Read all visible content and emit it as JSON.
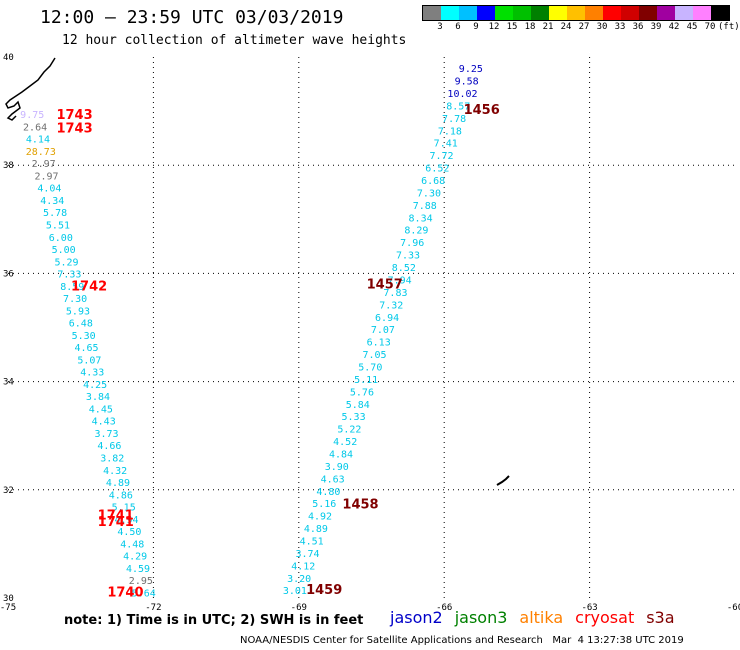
{
  "header": {
    "title": "12:00 — 23:59 UTC 03/03/2019",
    "subtitle": "12 hour collection of altimeter wave heights"
  },
  "colorbar": {
    "colors": [
      "#7f7f7f",
      "#00ffff",
      "#00c0ff",
      "#0000ff",
      "#00e000",
      "#00c000",
      "#008000",
      "#ffff00",
      "#ffc000",
      "#ff8000",
      "#ff0000",
      "#d00000",
      "#800000",
      "#a000a0",
      "#c8b4ff",
      "#ff80ff",
      "#000000"
    ],
    "labels": [
      "3",
      "6",
      "9",
      "12",
      "15",
      "18",
      "21",
      "24",
      "27",
      "30",
      "33",
      "36",
      "39",
      "42",
      "45",
      "70"
    ],
    "unit": "(ft)"
  },
  "axes": {
    "lon_ticks": [
      -75,
      -72,
      -69,
      -66,
      -63,
      -60
    ],
    "lat_ticks": [
      40,
      38,
      36,
      34,
      32,
      30
    ],
    "lon_range": [
      -75,
      -60
    ],
    "lat_range": [
      30,
      40
    ]
  },
  "tracks": [
    {
      "lon_top": -65.45,
      "lat_top": 39.72,
      "lon_bot": -69.08,
      "lat_bot": 30.07,
      "points": [
        {
          "v": "9.25",
          "c": "#0000c0"
        },
        {
          "v": "9.58",
          "c": "#0000c0"
        },
        {
          "v": "10.02",
          "c": "#0000c0"
        },
        {
          "v": "8.57",
          "c": "#00c8e8"
        },
        {
          "v": "7.78",
          "c": "#00c8e8"
        },
        {
          "v": "7.18",
          "c": "#00c8e8"
        },
        {
          "v": "7.41",
          "c": "#00c8e8"
        },
        {
          "v": "7.72",
          "c": "#00c8e8"
        },
        {
          "v": "6.52",
          "c": "#00c8e8"
        },
        {
          "v": "6.68",
          "c": "#00c8e8"
        },
        {
          "v": "7.30",
          "c": "#00c8e8"
        },
        {
          "v": "7.88",
          "c": "#00c8e8"
        },
        {
          "v": "8.34",
          "c": "#00c8e8"
        },
        {
          "v": "8.29",
          "c": "#00c8e8"
        },
        {
          "v": "7.96",
          "c": "#00c8e8"
        },
        {
          "v": "7.33",
          "c": "#00c8e8"
        },
        {
          "v": "8.52",
          "c": "#00c8e8"
        },
        {
          "v": "7.94",
          "c": "#00c8e8"
        },
        {
          "v": "7.83",
          "c": "#00c8e8"
        },
        {
          "v": "7.32",
          "c": "#00c8e8"
        },
        {
          "v": "6.94",
          "c": "#00c8e8"
        },
        {
          "v": "7.07",
          "c": "#00c8e8"
        },
        {
          "v": "6.13",
          "c": "#00c8e8"
        },
        {
          "v": "7.05",
          "c": "#00c8e8"
        },
        {
          "v": "5.70",
          "c": "#00c8e8"
        },
        {
          "v": "5.11",
          "c": "#00c8e8"
        },
        {
          "v": "5.76",
          "c": "#00c8e8"
        },
        {
          "v": "5.84",
          "c": "#00c8e8"
        },
        {
          "v": "5.33",
          "c": "#00c8e8"
        },
        {
          "v": "5.22",
          "c": "#00c8e8"
        },
        {
          "v": "4.52",
          "c": "#00c8e8"
        },
        {
          "v": "4.84",
          "c": "#00c8e8"
        },
        {
          "v": "3.90",
          "c": "#00c8e8"
        },
        {
          "v": "4.63",
          "c": "#00c8e8"
        },
        {
          "v": "4.80",
          "c": "#00c8e8"
        },
        {
          "v": "5.16",
          "c": "#00c8e8"
        },
        {
          "v": "4.92",
          "c": "#00c8e8"
        },
        {
          "v": "4.89",
          "c": "#00c8e8"
        },
        {
          "v": "4.51",
          "c": "#00c8e8"
        },
        {
          "v": "3.74",
          "c": "#00c8e8"
        },
        {
          "v": "4.12",
          "c": "#00c8e8"
        },
        {
          "v": "3.20",
          "c": "#00c8e8"
        },
        {
          "v": "3.01",
          "c": "#00c8e8"
        }
      ],
      "times": [
        {
          "t": "1456",
          "lon": -65.6,
          "lat": 38.95,
          "c": "#800000"
        },
        {
          "t": "1457",
          "lon": -67.6,
          "lat": 35.72,
          "c": "#800000"
        },
        {
          "t": "1458",
          "lon": -68.1,
          "lat": 31.65,
          "c": "#800000"
        },
        {
          "t": "1459",
          "lon": -68.85,
          "lat": 30.07,
          "c": "#800000"
        }
      ]
    },
    {
      "lon_top": -74.5,
      "lat_top": 38.87,
      "lon_bot": -72.2,
      "lat_bot": 30.03,
      "points": [
        {
          "v": "9.75",
          "c": "#c8b4ff"
        },
        {
          "v": "2.64",
          "c": "#707070"
        },
        {
          "v": "4.14",
          "c": "#00c8e8"
        },
        {
          "v": "28.73",
          "c": "#e0a000"
        },
        {
          "v": "2.97",
          "c": "#707070"
        },
        {
          "v": "2.97",
          "c": "#707070"
        },
        {
          "v": "4.04",
          "c": "#00c8e8"
        },
        {
          "v": "4.34",
          "c": "#00c8e8"
        },
        {
          "v": "5.78",
          "c": "#00c8e8"
        },
        {
          "v": "5.51",
          "c": "#00c8e8"
        },
        {
          "v": "6.00",
          "c": "#00c8e8"
        },
        {
          "v": "5.00",
          "c": "#00c8e8"
        },
        {
          "v": "5.29",
          "c": "#00c8e8"
        },
        {
          "v": "7.33",
          "c": "#00c8e8"
        },
        {
          "v": "8.59",
          "c": "#00c8e8"
        },
        {
          "v": "7.30",
          "c": "#00c8e8"
        },
        {
          "v": "5.93",
          "c": "#00c8e8"
        },
        {
          "v": "6.48",
          "c": "#00c8e8"
        },
        {
          "v": "5.30",
          "c": "#00c8e8"
        },
        {
          "v": "4.65",
          "c": "#00c8e8"
        },
        {
          "v": "5.07",
          "c": "#00c8e8"
        },
        {
          "v": "4.33",
          "c": "#00c8e8"
        },
        {
          "v": "4.25",
          "c": "#00c8e8"
        },
        {
          "v": "3.84",
          "c": "#00c8e8"
        },
        {
          "v": "4.45",
          "c": "#00c8e8"
        },
        {
          "v": "4.43",
          "c": "#00c8e8"
        },
        {
          "v": "3.73",
          "c": "#00c8e8"
        },
        {
          "v": "4.66",
          "c": "#00c8e8"
        },
        {
          "v": "3.82",
          "c": "#00c8e8"
        },
        {
          "v": "4.32",
          "c": "#00c8e8"
        },
        {
          "v": "4.89",
          "c": "#00c8e8"
        },
        {
          "v": "4.86",
          "c": "#00c8e8"
        },
        {
          "v": "5.15",
          "c": "#00c8e8"
        },
        {
          "v": "4.94",
          "c": "#00c8e8"
        },
        {
          "v": "4.50",
          "c": "#00c8e8"
        },
        {
          "v": "4.48",
          "c": "#00c8e8"
        },
        {
          "v": "4.29",
          "c": "#00c8e8"
        },
        {
          "v": "4.59",
          "c": "#00c8e8"
        },
        {
          "v": "2.95",
          "c": "#707070"
        },
        {
          "v": "5.64",
          "c": "#00c8e8"
        }
      ],
      "times": [
        {
          "t": "1743",
          "lon": -74.0,
          "lat": 38.85,
          "c": "#ff0000"
        },
        {
          "t": "1743",
          "lon": -74.0,
          "lat": 38.6,
          "c": "#ff0000"
        },
        {
          "t": "1742",
          "lon": -73.7,
          "lat": 35.68,
          "c": "#ff0000"
        },
        {
          "t": "1741",
          "lon": -73.15,
          "lat": 31.45,
          "c": "#ff0000"
        },
        {
          "t": "1741",
          "lon": -73.15,
          "lat": 31.33,
          "c": "#ff0000"
        },
        {
          "t": "1740",
          "lon": -72.95,
          "lat": 30.03,
          "c": "#ff0000"
        }
      ]
    }
  ],
  "note": "note: 1) Time is in UTC; 2) SWH is in feet",
  "legend": [
    {
      "name": "jason2",
      "color": "#0000c8"
    },
    {
      "name": "jason3",
      "color": "#008000"
    },
    {
      "name": "altika",
      "color": "#ff8000"
    },
    {
      "name": "cryosat",
      "color": "#ff0000"
    },
    {
      "name": "s3a",
      "color": "#800000"
    }
  ],
  "footer": "NOAA/NESDIS Center for Satellite Applications and Research   Mar  4 13:27:38 UTC 2019"
}
